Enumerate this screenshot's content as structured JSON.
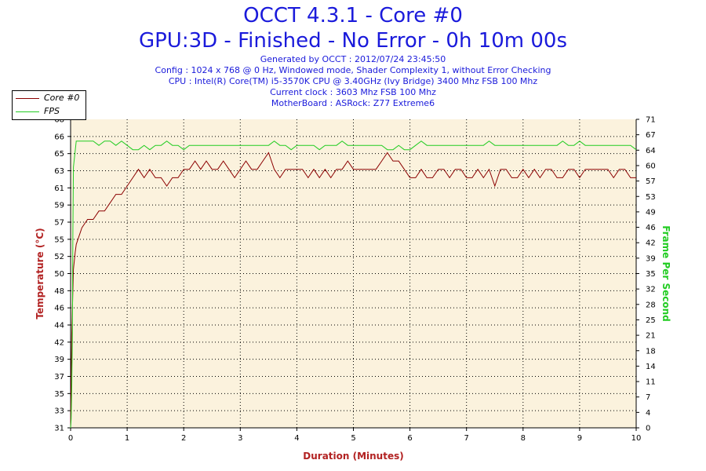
{
  "header": {
    "title": "OCCT 4.3.1 - Core #0",
    "subtitle": "GPU:3D - Finished - No Error - 0h 10m 00s",
    "info_lines": [
      "Generated by OCCT : 2012/07/24 23:45:50",
      "Config : 1024 x 768 @ 0 Hz, Windowed mode, Shader Complexity 1, without Error Checking",
      "CPU : Intel(R) Core(TM) i5-3570K CPU @ 3.40GHz (Ivy Bridge) 3400 Mhz FSB 100 Mhz",
      "Current clock : 3603 Mhz FSB 100 Mhz",
      "MotherBoard : ASRock: Z77 Extreme6"
    ]
  },
  "legend": {
    "entries": [
      {
        "label": "Core #0",
        "color": "#8b0000"
      },
      {
        "label": "FPS",
        "color": "#22cc22"
      }
    ]
  },
  "chart_data": {
    "type": "line",
    "xlabel": "Duration (Minutes)",
    "ylabel_left": "Temperature (°C)",
    "ylabel_right": "Frame Per Second",
    "xlim": [
      0,
      10
    ],
    "ylim_left": [
      31,
      68
    ],
    "ylim_right": [
      0,
      71
    ],
    "x_ticks": [
      "0",
      "1",
      "2",
      "3",
      "4",
      "5",
      "6",
      "7",
      "8",
      "9",
      "10"
    ],
    "y_left_ticks": [
      "31",
      "33",
      "35",
      "37",
      "39",
      "42",
      "44",
      "46",
      "48",
      "50",
      "52",
      "55",
      "57",
      "59",
      "61",
      "63",
      "65",
      "66",
      "68"
    ],
    "y_right_ticks": [
      "0",
      "4",
      "7",
      "11",
      "14",
      "18",
      "21",
      "25",
      "28",
      "32",
      "35",
      "39",
      "42",
      "46",
      "49",
      "53",
      "57",
      "60",
      "64",
      "67",
      "71"
    ],
    "grid": true,
    "background": "#fbf2dd",
    "series": [
      {
        "name": "Core #0",
        "color": "#8b0000",
        "axis": "left",
        "x": [
          0.0,
          0.02,
          0.05,
          0.08,
          0.1,
          0.15,
          0.2,
          0.3,
          0.4,
          0.5,
          0.6,
          0.7,
          0.8,
          0.9,
          1.0,
          1.1,
          1.2,
          1.3,
          1.4,
          1.5,
          1.6,
          1.7,
          1.8,
          1.9,
          2.0,
          2.1,
          2.2,
          2.3,
          2.4,
          2.5,
          2.6,
          2.7,
          2.8,
          2.9,
          3.0,
          3.1,
          3.2,
          3.3,
          3.4,
          3.5,
          3.6,
          3.7,
          3.8,
          3.9,
          4.0,
          4.1,
          4.2,
          4.3,
          4.4,
          4.5,
          4.6,
          4.7,
          4.8,
          4.9,
          5.0,
          5.1,
          5.2,
          5.3,
          5.4,
          5.5,
          5.6,
          5.7,
          5.8,
          5.9,
          6.0,
          6.1,
          6.2,
          6.3,
          6.4,
          6.5,
          6.6,
          6.7,
          6.8,
          6.9,
          7.0,
          7.1,
          7.2,
          7.3,
          7.4,
          7.5,
          7.6,
          7.7,
          7.8,
          7.9,
          8.0,
          8.1,
          8.2,
          8.3,
          8.4,
          8.5,
          8.6,
          8.7,
          8.8,
          8.9,
          9.0,
          9.1,
          9.2,
          9.3,
          9.4,
          9.5,
          9.6,
          9.7,
          9.8,
          9.9,
          10.0
        ],
        "values": [
          31,
          42,
          50,
          52,
          53,
          54,
          55,
          56,
          56,
          57,
          57,
          58,
          59,
          59,
          60,
          61,
          62,
          61,
          62,
          61,
          61,
          60,
          61,
          61,
          62,
          62,
          63,
          62,
          63,
          62,
          62,
          63,
          62,
          61,
          62,
          63,
          62,
          62,
          63,
          64,
          62,
          61,
          62,
          62,
          62,
          62,
          61,
          62,
          61,
          62,
          61,
          62,
          62,
          63,
          62,
          62,
          62,
          62,
          62,
          63,
          64,
          63,
          63,
          62,
          61,
          61,
          62,
          61,
          61,
          62,
          62,
          61,
          62,
          62,
          61,
          61,
          62,
          61,
          62,
          60,
          62,
          62,
          61,
          61,
          62,
          61,
          62,
          61,
          62,
          62,
          61,
          61,
          62,
          62,
          61,
          62,
          62,
          62,
          62,
          62,
          61,
          62,
          62,
          61,
          61
        ]
      },
      {
        "name": "FPS",
        "color": "#22cc22",
        "axis": "right",
        "x": [
          0.0,
          0.01,
          0.02,
          0.03,
          0.04,
          0.05,
          0.1,
          0.2,
          0.3,
          0.4,
          0.5,
          0.6,
          0.7,
          0.8,
          0.9,
          1.0,
          1.1,
          1.2,
          1.3,
          1.4,
          1.5,
          1.6,
          1.7,
          1.8,
          1.9,
          2.0,
          2.1,
          2.2,
          2.3,
          2.4,
          2.5,
          2.6,
          2.7,
          2.8,
          2.9,
          3.0,
          3.1,
          3.2,
          3.3,
          3.4,
          3.5,
          3.6,
          3.7,
          3.8,
          3.9,
          4.0,
          4.1,
          4.2,
          4.3,
          4.4,
          4.5,
          4.6,
          4.7,
          4.8,
          4.9,
          5.0,
          5.1,
          5.2,
          5.3,
          5.4,
          5.5,
          5.6,
          5.7,
          5.8,
          5.9,
          6.0,
          6.1,
          6.2,
          6.3,
          6.4,
          6.5,
          6.6,
          6.7,
          6.8,
          6.9,
          7.0,
          7.1,
          7.2,
          7.3,
          7.4,
          7.5,
          7.6,
          7.7,
          7.8,
          7.9,
          8.0,
          8.1,
          8.2,
          8.3,
          8.4,
          8.5,
          8.6,
          8.7,
          8.8,
          8.9,
          9.0,
          9.1,
          9.2,
          9.3,
          9.4,
          9.5,
          9.6,
          9.7,
          9.8,
          9.9,
          10.0
        ],
        "values": [
          0,
          2,
          8,
          20,
          45,
          60,
          66,
          66,
          66,
          66,
          65,
          66,
          66,
          65,
          66,
          65,
          64,
          64,
          65,
          64,
          65,
          65,
          66,
          65,
          65,
          64,
          65,
          65,
          65,
          65,
          65,
          65,
          65,
          65,
          65,
          65,
          65,
          65,
          65,
          65,
          65,
          66,
          65,
          65,
          64,
          65,
          65,
          65,
          65,
          64,
          65,
          65,
          65,
          66,
          65,
          65,
          65,
          65,
          65,
          65,
          65,
          64,
          64,
          65,
          64,
          64,
          65,
          66,
          65,
          65,
          65,
          65,
          65,
          65,
          65,
          65,
          65,
          65,
          65,
          66,
          65,
          65,
          65,
          65,
          65,
          65,
          65,
          65,
          65,
          65,
          65,
          65,
          66,
          65,
          65,
          66,
          65,
          65,
          65,
          65,
          65,
          65,
          65,
          65,
          65,
          64
        ]
      }
    ]
  }
}
